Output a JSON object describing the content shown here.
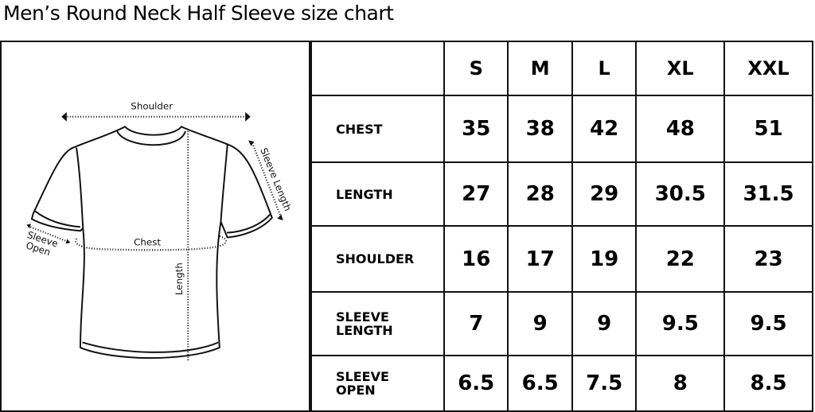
{
  "title": "Men’s Round Neck Half Sleeve size chart",
  "diagram": {
    "labels": {
      "shoulder": "Shoulder",
      "sleeve_length": "Sleeve Length",
      "sleeve_open_1": "Sleeve",
      "sleeve_open_2": "Open",
      "chest": "Chest",
      "length": "Length"
    }
  },
  "table": {
    "sizes": [
      "S",
      "M",
      "L",
      "XL",
      "XXL"
    ],
    "rows": [
      {
        "label": [
          "CHEST"
        ],
        "values": [
          "35",
          "38",
          "42",
          "48",
          "51"
        ]
      },
      {
        "label": [
          "LENGTH"
        ],
        "values": [
          "27",
          "28",
          "29",
          "30.5",
          "31.5"
        ]
      },
      {
        "label": [
          "SHOULDER"
        ],
        "values": [
          "16",
          "17",
          "19",
          "22",
          "23"
        ]
      },
      {
        "label": [
          "SLEEVE",
          "LENGTH"
        ],
        "values": [
          "7",
          "9",
          "9",
          "9.5",
          "9.5"
        ]
      },
      {
        "label": [
          "SLEEVE",
          "OPEN"
        ],
        "values": [
          "6.5",
          "6.5",
          "7.5",
          "8",
          "8.5"
        ]
      }
    ]
  }
}
